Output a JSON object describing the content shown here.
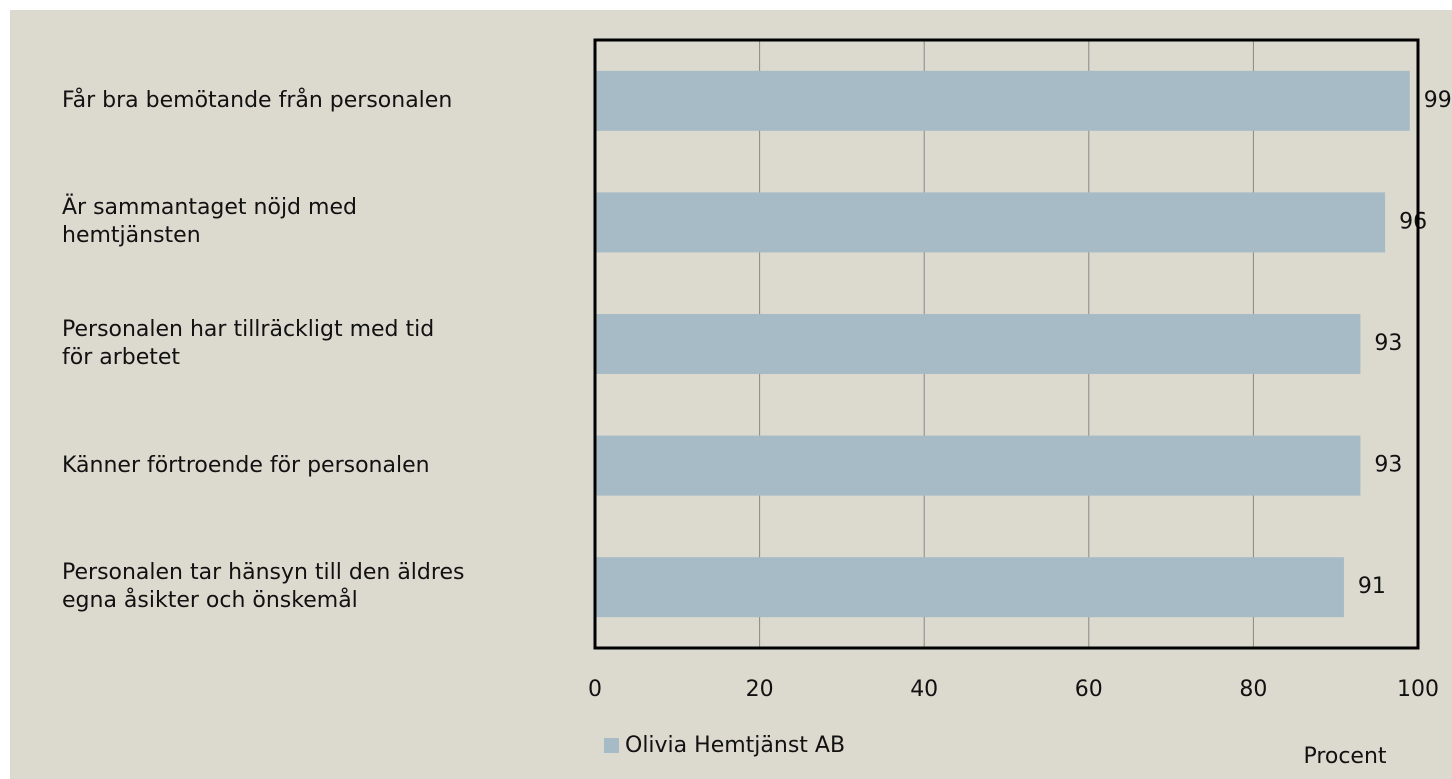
{
  "chart_data": {
    "type": "bar",
    "orientation": "horizontal",
    "categories": [
      "Får bra bemötande från personalen",
      "Är sammantaget nöjd med\nhemtjänsten",
      "Personalen har tillräckligt med tid\nför arbetet",
      "Känner förtroende för personalen",
      "Personalen tar hänsyn till den äldres\negna åsikter och önskemål"
    ],
    "series": [
      {
        "name": "Olivia Hemtjänst AB",
        "color": "#a6bbc6",
        "values": [
          99,
          96,
          93,
          93,
          91
        ]
      }
    ],
    "xlim": [
      0,
      100
    ],
    "xticks": [
      0,
      20,
      40,
      60,
      80,
      100
    ],
    "grid": true,
    "xlabel": "Procent",
    "legend": "bottom-left"
  }
}
